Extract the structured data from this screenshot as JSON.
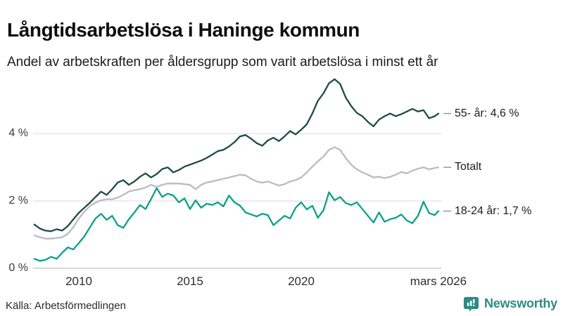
{
  "chart_data": {
    "type": "line",
    "title": "Långtidsarbetslösa i Haninge kommun",
    "subtitle": "Andel av arbetskraften per åldersgrupp som varit arbetslösa i minst ett år",
    "x_axis": {
      "range": [
        2008.0,
        2026.25
      ],
      "ticks": [
        {
          "label": "2010",
          "year": 2010
        },
        {
          "label": "2015",
          "year": 2015
        },
        {
          "label": "2020",
          "year": 2020
        },
        {
          "label": "mars 2026",
          "year": 2026.17
        }
      ]
    },
    "y_axis": {
      "unit": "%",
      "range": [
        0,
        5.9
      ],
      "grid": true,
      "ticks": [
        {
          "label": "0 %",
          "value": 0
        },
        {
          "label": "2 %",
          "value": 2
        },
        {
          "label": "4 %",
          "value": 4
        }
      ]
    },
    "legend_position": "end-of-line labels",
    "series": [
      {
        "name": "55- år",
        "end_label": "55- år: 4,6 %",
        "latest_value": 4.6,
        "color": "#1e4b43",
        "points": [
          [
            2008.0,
            1.3
          ],
          [
            2008.25,
            1.18
          ],
          [
            2008.5,
            1.12
          ],
          [
            2008.75,
            1.1
          ],
          [
            2009.0,
            1.16
          ],
          [
            2009.25,
            1.12
          ],
          [
            2009.5,
            1.25
          ],
          [
            2009.75,
            1.45
          ],
          [
            2010.0,
            1.65
          ],
          [
            2010.25,
            1.8
          ],
          [
            2010.5,
            1.95
          ],
          [
            2010.75,
            2.12
          ],
          [
            2011.0,
            2.28
          ],
          [
            2011.25,
            2.18
          ],
          [
            2011.5,
            2.35
          ],
          [
            2011.75,
            2.55
          ],
          [
            2012.0,
            2.62
          ],
          [
            2012.25,
            2.48
          ],
          [
            2012.5,
            2.58
          ],
          [
            2012.75,
            2.72
          ],
          [
            2013.0,
            2.82
          ],
          [
            2013.25,
            2.7
          ],
          [
            2013.5,
            2.8
          ],
          [
            2013.75,
            2.95
          ],
          [
            2014.0,
            3.0
          ],
          [
            2014.25,
            2.85
          ],
          [
            2014.5,
            2.92
          ],
          [
            2014.75,
            3.02
          ],
          [
            2015.0,
            3.08
          ],
          [
            2015.25,
            3.14
          ],
          [
            2015.5,
            3.2
          ],
          [
            2015.75,
            3.28
          ],
          [
            2016.0,
            3.38
          ],
          [
            2016.25,
            3.48
          ],
          [
            2016.5,
            3.52
          ],
          [
            2016.75,
            3.62
          ],
          [
            2017.0,
            3.75
          ],
          [
            2017.25,
            3.92
          ],
          [
            2017.5,
            3.96
          ],
          [
            2017.75,
            3.85
          ],
          [
            2018.0,
            3.72
          ],
          [
            2018.25,
            3.64
          ],
          [
            2018.5,
            3.8
          ],
          [
            2018.75,
            3.88
          ],
          [
            2019.0,
            3.78
          ],
          [
            2019.25,
            3.92
          ],
          [
            2019.5,
            4.08
          ],
          [
            2019.75,
            3.98
          ],
          [
            2020.0,
            4.12
          ],
          [
            2020.25,
            4.28
          ],
          [
            2020.5,
            4.6
          ],
          [
            2020.75,
            4.98
          ],
          [
            2021.0,
            5.2
          ],
          [
            2021.25,
            5.5
          ],
          [
            2021.5,
            5.62
          ],
          [
            2021.75,
            5.48
          ],
          [
            2022.0,
            5.08
          ],
          [
            2022.25,
            4.82
          ],
          [
            2022.5,
            4.62
          ],
          [
            2022.75,
            4.52
          ],
          [
            2023.0,
            4.35
          ],
          [
            2023.25,
            4.22
          ],
          [
            2023.5,
            4.42
          ],
          [
            2023.75,
            4.52
          ],
          [
            2024.0,
            4.6
          ],
          [
            2024.25,
            4.52
          ],
          [
            2024.5,
            4.58
          ],
          [
            2024.75,
            4.66
          ],
          [
            2025.0,
            4.74
          ],
          [
            2025.25,
            4.66
          ],
          [
            2025.5,
            4.7
          ],
          [
            2025.75,
            4.46
          ],
          [
            2026.0,
            4.52
          ],
          [
            2026.17,
            4.6
          ]
        ]
      },
      {
        "name": "Totalt",
        "end_label": "Totalt",
        "latest_value": 3.0,
        "color": "#bdb9c9",
        "points": [
          [
            2008.0,
            0.98
          ],
          [
            2008.25,
            0.92
          ],
          [
            2008.5,
            0.88
          ],
          [
            2008.75,
            0.88
          ],
          [
            2009.0,
            0.9
          ],
          [
            2009.25,
            0.92
          ],
          [
            2009.5,
            1.02
          ],
          [
            2009.75,
            1.22
          ],
          [
            2010.0,
            1.48
          ],
          [
            2010.25,
            1.68
          ],
          [
            2010.5,
            1.85
          ],
          [
            2010.75,
            1.95
          ],
          [
            2011.0,
            2.02
          ],
          [
            2011.25,
            2.05
          ],
          [
            2011.5,
            2.05
          ],
          [
            2011.75,
            2.1
          ],
          [
            2012.0,
            2.18
          ],
          [
            2012.25,
            2.28
          ],
          [
            2012.5,
            2.32
          ],
          [
            2012.75,
            2.35
          ],
          [
            2013.0,
            2.4
          ],
          [
            2013.25,
            2.48
          ],
          [
            2013.5,
            2.42
          ],
          [
            2013.75,
            2.48
          ],
          [
            2014.0,
            2.52
          ],
          [
            2014.25,
            2.52
          ],
          [
            2014.5,
            2.52
          ],
          [
            2014.75,
            2.5
          ],
          [
            2015.0,
            2.48
          ],
          [
            2015.25,
            2.35
          ],
          [
            2015.5,
            2.48
          ],
          [
            2015.75,
            2.55
          ],
          [
            2016.0,
            2.58
          ],
          [
            2016.25,
            2.62
          ],
          [
            2016.5,
            2.66
          ],
          [
            2016.75,
            2.7
          ],
          [
            2017.0,
            2.74
          ],
          [
            2017.25,
            2.78
          ],
          [
            2017.5,
            2.76
          ],
          [
            2017.75,
            2.66
          ],
          [
            2018.0,
            2.58
          ],
          [
            2018.25,
            2.54
          ],
          [
            2018.5,
            2.58
          ],
          [
            2018.75,
            2.52
          ],
          [
            2019.0,
            2.46
          ],
          [
            2019.25,
            2.5
          ],
          [
            2019.5,
            2.58
          ],
          [
            2019.75,
            2.62
          ],
          [
            2020.0,
            2.7
          ],
          [
            2020.25,
            2.85
          ],
          [
            2020.5,
            3.02
          ],
          [
            2020.75,
            3.18
          ],
          [
            2021.0,
            3.32
          ],
          [
            2021.25,
            3.52
          ],
          [
            2021.5,
            3.6
          ],
          [
            2021.75,
            3.52
          ],
          [
            2022.0,
            3.28
          ],
          [
            2022.25,
            3.08
          ],
          [
            2022.5,
            2.94
          ],
          [
            2022.75,
            2.85
          ],
          [
            2023.0,
            2.78
          ],
          [
            2023.25,
            2.7
          ],
          [
            2023.5,
            2.72
          ],
          [
            2023.75,
            2.68
          ],
          [
            2024.0,
            2.72
          ],
          [
            2024.25,
            2.78
          ],
          [
            2024.5,
            2.86
          ],
          [
            2024.75,
            2.82
          ],
          [
            2025.0,
            2.9
          ],
          [
            2025.25,
            2.96
          ],
          [
            2025.5,
            3.0
          ],
          [
            2025.75,
            2.94
          ],
          [
            2026.0,
            2.98
          ],
          [
            2026.17,
            3.0
          ]
        ]
      },
      {
        "name": "18-24 år",
        "end_label": "18-24 år: 1,7 %",
        "latest_value": 1.7,
        "color": "#0aa08b",
        "points": [
          [
            2008.0,
            0.28
          ],
          [
            2008.25,
            0.22
          ],
          [
            2008.5,
            0.25
          ],
          [
            2008.75,
            0.34
          ],
          [
            2009.0,
            0.28
          ],
          [
            2009.25,
            0.46
          ],
          [
            2009.5,
            0.62
          ],
          [
            2009.75,
            0.56
          ],
          [
            2010.0,
            0.75
          ],
          [
            2010.25,
            0.95
          ],
          [
            2010.5,
            1.22
          ],
          [
            2010.75,
            1.48
          ],
          [
            2011.0,
            1.62
          ],
          [
            2011.25,
            1.44
          ],
          [
            2011.5,
            1.56
          ],
          [
            2011.75,
            1.28
          ],
          [
            2012.0,
            1.2
          ],
          [
            2012.25,
            1.46
          ],
          [
            2012.5,
            1.66
          ],
          [
            2012.75,
            1.88
          ],
          [
            2013.0,
            1.76
          ],
          [
            2013.25,
            2.06
          ],
          [
            2013.5,
            2.38
          ],
          [
            2013.75,
            2.12
          ],
          [
            2014.0,
            2.22
          ],
          [
            2014.25,
            2.16
          ],
          [
            2014.5,
            1.96
          ],
          [
            2014.75,
            2.08
          ],
          [
            2015.0,
            1.76
          ],
          [
            2015.25,
            2.02
          ],
          [
            2015.5,
            1.8
          ],
          [
            2015.75,
            1.92
          ],
          [
            2016.0,
            1.88
          ],
          [
            2016.25,
            1.96
          ],
          [
            2016.5,
            1.84
          ],
          [
            2016.75,
            2.16
          ],
          [
            2017.0,
            1.96
          ],
          [
            2017.25,
            1.86
          ],
          [
            2017.5,
            1.66
          ],
          [
            2017.75,
            1.6
          ],
          [
            2018.0,
            1.54
          ],
          [
            2018.25,
            1.62
          ],
          [
            2018.5,
            1.58
          ],
          [
            2018.75,
            1.28
          ],
          [
            2019.0,
            1.42
          ],
          [
            2019.25,
            1.56
          ],
          [
            2019.5,
            1.48
          ],
          [
            2019.75,
            1.8
          ],
          [
            2020.0,
            1.96
          ],
          [
            2020.25,
            1.75
          ],
          [
            2020.5,
            1.86
          ],
          [
            2020.75,
            1.5
          ],
          [
            2021.0,
            1.72
          ],
          [
            2021.25,
            2.26
          ],
          [
            2021.5,
            2.02
          ],
          [
            2021.75,
            2.12
          ],
          [
            2022.0,
            1.94
          ],
          [
            2022.25,
            1.88
          ],
          [
            2022.5,
            1.96
          ],
          [
            2022.75,
            1.76
          ],
          [
            2023.0,
            1.56
          ],
          [
            2023.25,
            1.36
          ],
          [
            2023.5,
            1.66
          ],
          [
            2023.75,
            1.38
          ],
          [
            2024.0,
            1.46
          ],
          [
            2024.25,
            1.5
          ],
          [
            2024.5,
            1.6
          ],
          [
            2024.75,
            1.42
          ],
          [
            2025.0,
            1.34
          ],
          [
            2025.25,
            1.56
          ],
          [
            2025.5,
            1.98
          ],
          [
            2025.75,
            1.64
          ],
          [
            2026.0,
            1.58
          ],
          [
            2026.17,
            1.7
          ]
        ]
      }
    ]
  },
  "footer": {
    "source": "Källa: Arbetsförmedlingen",
    "brand_name": "Newsworthy",
    "brand_icon": "newsworthy-barchart-bubble-icon"
  },
  "colors": {
    "background": "#ffffff",
    "grid": "#e7e6eb",
    "baseline": "#d8d7dc",
    "connector": "#999999",
    "brand_teal": "#2e8b84",
    "series_55": "#1e4b43",
    "series_total": "#bdb9c9",
    "series_18_24": "#0aa08b"
  }
}
